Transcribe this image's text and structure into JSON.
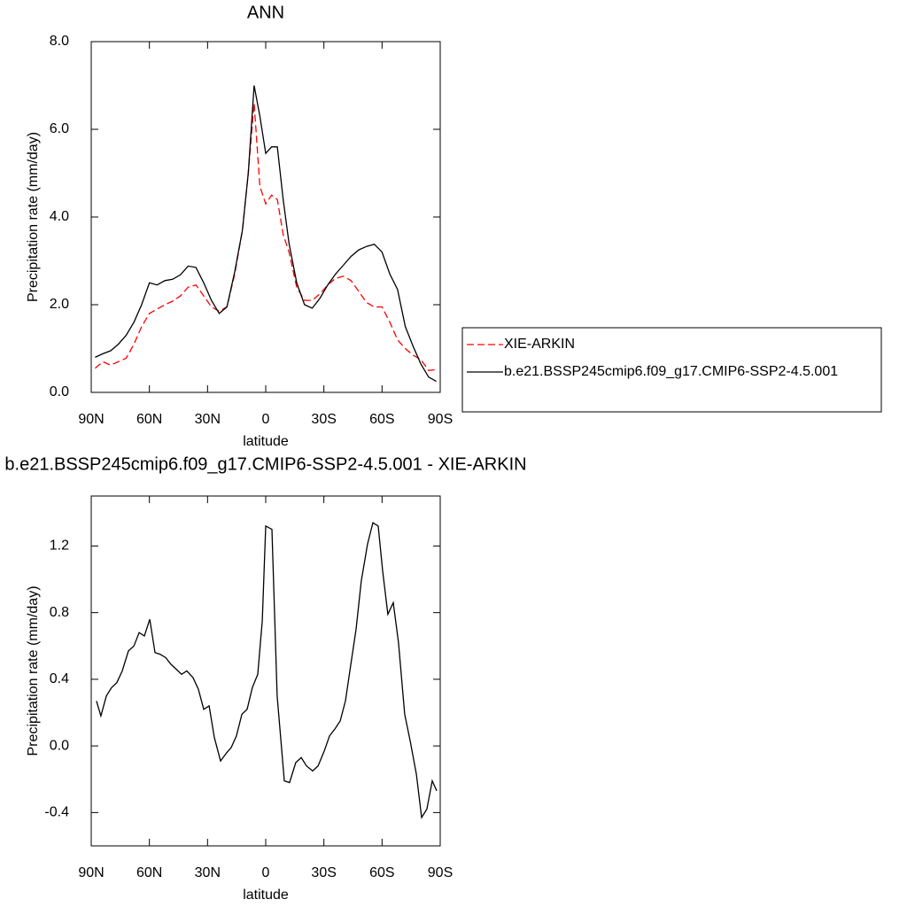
{
  "chart_data": [
    {
      "type": "line",
      "title": "ANN",
      "xlabel": "latitude",
      "ylabel": "Precipitation rate (mm/day)",
      "x": [
        88,
        84,
        80,
        76,
        72,
        68,
        64,
        60,
        56,
        52,
        48,
        44,
        40,
        36,
        32,
        28,
        24,
        20,
        16,
        12,
        9,
        6,
        3,
        0,
        -3,
        -6,
        -9,
        -12,
        -16,
        -20,
        -24,
        -28,
        -32,
        -36,
        -40,
        -44,
        -48,
        -52,
        -56,
        -60,
        -64,
        -68,
        -72,
        -76,
        -80,
        -84,
        -88
      ],
      "xlim": [
        90,
        -90
      ],
      "xticks": [
        {
          "value": 90,
          "label": "90N"
        },
        {
          "value": 60,
          "label": "60N"
        },
        {
          "value": 30,
          "label": "30N"
        },
        0,
        {
          "value": -30,
          "label": "30S"
        },
        {
          "value": -60,
          "label": "60S"
        },
        {
          "value": -90,
          "label": "90S"
        }
      ],
      "ylim": [
        0,
        8
      ],
      "yticks": [
        {
          "value": 0,
          "label": "0.0"
        },
        {
          "value": 2,
          "label": "2.0"
        },
        {
          "value": 4,
          "label": "4.0"
        },
        {
          "value": 6,
          "label": "6.0"
        },
        {
          "value": 8,
          "label": "8.0"
        }
      ],
      "legend": "right",
      "series": [
        {
          "name": "XIE-ARKIN",
          "color": "#ff0000",
          "dash": "dashed",
          "values": [
            0.55,
            0.7,
            0.62,
            0.7,
            0.78,
            1.1,
            1.5,
            1.8,
            1.9,
            2.0,
            2.08,
            2.2,
            2.4,
            2.45,
            2.2,
            1.95,
            1.85,
            1.95,
            2.7,
            3.7,
            5.0,
            6.6,
            4.7,
            4.3,
            4.5,
            4.4,
            3.6,
            3.2,
            2.4,
            2.1,
            2.1,
            2.25,
            2.45,
            2.6,
            2.65,
            2.55,
            2.3,
            2.05,
            1.95,
            1.95,
            1.6,
            1.2,
            1.0,
            0.85,
            0.75,
            0.5,
            0.52
          ]
        },
        {
          "name": "b.e21.BSSP245cmip6.f09_g17.CMIP6-SSP2-4.5.001",
          "color": "#000000",
          "dash": "solid",
          "values": [
            0.8,
            0.88,
            0.95,
            1.1,
            1.3,
            1.6,
            2.0,
            2.5,
            2.45,
            2.55,
            2.58,
            2.68,
            2.88,
            2.85,
            2.5,
            2.1,
            1.8,
            1.95,
            2.75,
            3.7,
            5.0,
            7.0,
            6.3,
            5.45,
            5.6,
            5.6,
            4.4,
            3.4,
            2.5,
            2.0,
            1.92,
            2.15,
            2.45,
            2.7,
            2.9,
            3.1,
            3.25,
            3.33,
            3.38,
            3.2,
            2.7,
            2.35,
            1.5,
            1.05,
            0.65,
            0.35,
            0.25
          ]
        }
      ]
    },
    {
      "type": "line",
      "title": "b.e21.BSSP245cmip6.f09_g17.CMIP6-SSP2-4.5.001 - XIE-ARKIN",
      "xlabel": "latitude",
      "ylabel": "Precipitation rate (mm/day)",
      "x": [
        87.3,
        85,
        82.2,
        79.5,
        76.8,
        74,
        70.8,
        68,
        65.3,
        62.6,
        59.8,
        57.1,
        54.4,
        51.6,
        48.9,
        46.1,
        43.4,
        40.7,
        37.5,
        34.7,
        32,
        29.2,
        26.5,
        23.3,
        20.1,
        17.8,
        15.1,
        12.3,
        9.6,
        6.9,
        4.1,
        1.8,
        0,
        -3.2,
        -5.9,
        -9.6,
        -12.3,
        -15.5,
        -18.3,
        -21,
        -24.2,
        -27,
        -30.2,
        -32.9,
        -35.6,
        -38.4,
        -41.1,
        -43.9,
        -46.6,
        -49.3,
        -52.5,
        -55.3,
        -58,
        -60.3,
        -63,
        -65.8,
        -68.5,
        -71.7,
        -74.5,
        -77.7,
        -80.4,
        -83.1,
        -85.9,
        -88.2
      ],
      "xlim": [
        90,
        -90
      ],
      "xticks": [
        {
          "value": 90,
          "label": "90N"
        },
        {
          "value": 60,
          "label": "60N"
        },
        {
          "value": 30,
          "label": "30N"
        },
        0,
        {
          "value": -30,
          "label": "30S"
        },
        {
          "value": -60,
          "label": "60S"
        },
        {
          "value": -90,
          "label": "90S"
        }
      ],
      "ylim": [
        -0.6,
        1.5
      ],
      "yticks": [
        -0.4,
        {
          "value": 0,
          "label": "0.0"
        },
        0.4,
        0.8,
        1.2
      ],
      "series": [
        {
          "color": "#000000",
          "dash": "solid",
          "values": [
            0.27,
            0.18,
            0.3,
            0.35,
            0.38,
            0.45,
            0.57,
            0.6,
            0.68,
            0.66,
            0.76,
            0.56,
            0.55,
            0.53,
            0.49,
            0.46,
            0.43,
            0.45,
            0.41,
            0.34,
            0.22,
            0.24,
            0.05,
            -0.09,
            -0.04,
            -0.01,
            0.06,
            0.19,
            0.22,
            0.35,
            0.43,
            0.75,
            1.32,
            1.3,
            0.3,
            -0.21,
            -0.22,
            -0.1,
            -0.07,
            -0.12,
            -0.15,
            -0.12,
            -0.03,
            0.06,
            0.1,
            0.15,
            0.27,
            0.49,
            0.7,
            0.99,
            1.21,
            1.34,
            1.32,
            1.05,
            0.79,
            0.86,
            0.62,
            0.19,
            0.03,
            -0.17,
            -0.43,
            -0.38,
            -0.21,
            -0.27
          ]
        }
      ]
    }
  ]
}
